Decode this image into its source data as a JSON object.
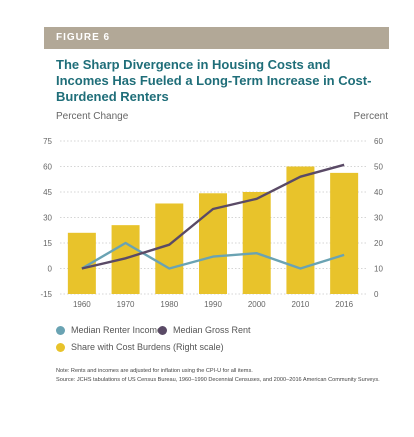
{
  "figure_label": "FIGURE 6",
  "title": "The Sharp Divergence in Housing Costs and Incomes Has Fueled a Long-Term Increase in Cost-Burdened Renters",
  "notes": {
    "note": "Note: Rents and incomes are adjusted for inflation using the CPI-U for all items.",
    "source": "Source: JCHS tabulations of US Census Bureau, 1960–1990 Decennial Censuses, and 2000–2016 American Community Surveys."
  },
  "colors": {
    "banner": "#b2a897",
    "title": "#1f6e79",
    "bars": "#e8c32b",
    "income_line": "#6aa3b3",
    "rent_line": "#5a4a66",
    "grid": "#c8c8c8"
  },
  "chart_data": {
    "type": "bar",
    "categories": [
      "1960",
      "1970",
      "1980",
      "1990",
      "2000",
      "2010",
      "2016"
    ],
    "ylabel_left": "Percent Change",
    "ylabel_right": "Percent",
    "ylim_left": [
      -15,
      75
    ],
    "ylim_right": [
      0,
      60
    ],
    "yticks_left": [
      "-15",
      "0",
      "15",
      "30",
      "45",
      "60",
      "75"
    ],
    "yticks_right": [
      "0",
      "10",
      "20",
      "30",
      "40",
      "50",
      "60"
    ],
    "grid": true,
    "legend_position": "bottom",
    "series": [
      {
        "name": "Share with Cost Burdens (Right scale)",
        "kind": "bar",
        "axis": "right",
        "values": [
          24,
          27,
          35.5,
          39.5,
          40,
          50,
          47.5
        ]
      },
      {
        "name": "Median Renter Income",
        "kind": "line",
        "axis": "left",
        "values": [
          0,
          15,
          0,
          7,
          9,
          0,
          8
        ]
      },
      {
        "name": "Median Gross Rent",
        "kind": "line",
        "axis": "left",
        "values": [
          0,
          6,
          14,
          35,
          41,
          54,
          61
        ]
      }
    ]
  }
}
